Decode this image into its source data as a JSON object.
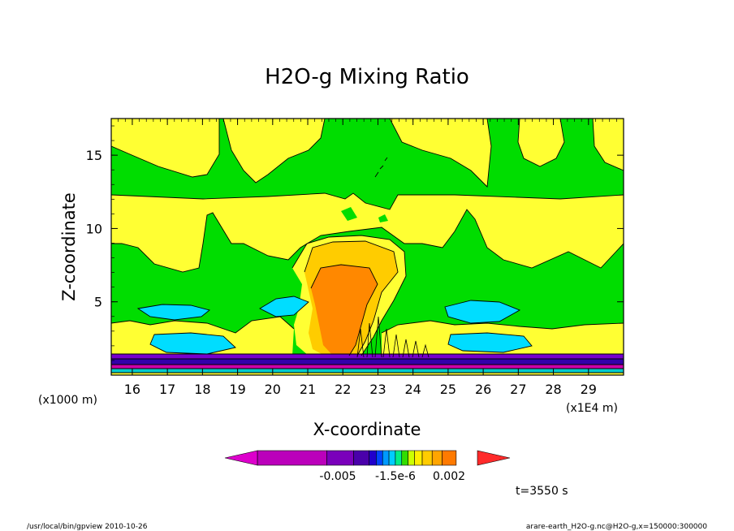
{
  "chart_data": {
    "type": "heatmap",
    "title": "H2O-g Mixing Ratio",
    "xlabel": "X-coordinate",
    "ylabel": "Z-coordinate",
    "x_unit_label": "(x1E4 m)",
    "y_unit_label": "(x1000 m)",
    "x_ticks": [
      16,
      17,
      18,
      19,
      20,
      21,
      22,
      23,
      24,
      25,
      26,
      27,
      28,
      29
    ],
    "y_ticks": [
      5,
      10,
      15
    ],
    "xlim": [
      15.4,
      30.0
    ],
    "ylim": [
      0,
      17.5
    ],
    "colorbar_labels": [
      "-0.005",
      "-1.5e-6",
      "0.002"
    ],
    "time_label": "t=3550 s",
    "footer_left": "/usr/local/bin/gpview  2010-10-26",
    "footer_right": "arare-earth_H2O-g.nc@H2O-g,x=150000:300000",
    "colors": {
      "background_level": "#00dd00",
      "upper_level": "#ffff33",
      "mid_level": "#ffcc00",
      "core_level": "#ff8800",
      "low_level": "#00ddff",
      "surface_dark": "#3300aa",
      "surface_purple": "#7700cc",
      "surface_magenta": "#cc00aa",
      "surface_cyan": "#00cccc"
    },
    "colorbar_colors": [
      "#dd00cc",
      "#bb00bb",
      "#7a00bb",
      "#4a00aa",
      "#2000cc",
      "#0044ff",
      "#0099ff",
      "#00ccff",
      "#00ee88",
      "#33dd00",
      "#ccff00",
      "#ffee00",
      "#ffcc00",
      "#ffa500",
      "#ff7a00",
      "#ff2a2a"
    ]
  }
}
